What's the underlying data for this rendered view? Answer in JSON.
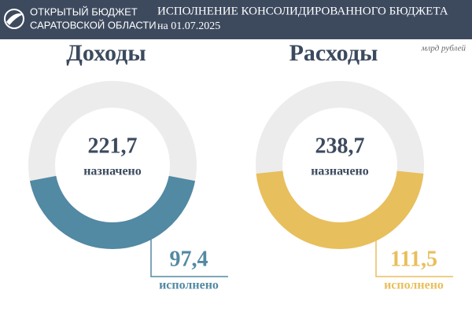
{
  "header": {
    "logo": [
      "ОТКРЫТЫЙ БЮДЖЕТ",
      "САРАТОВСКОЙ ОБЛАСТИ"
    ],
    "title": "ИСПОЛНЕНИЕ КОНСОЛИДИРОВАННОГО БЮДЖЕТА",
    "date": "на 01.07.2025"
  },
  "unit": "млрд рублей",
  "chart_data": [
    {
      "type": "donut",
      "title": "Доходы",
      "categories": [
        "назначено",
        "исполнено"
      ],
      "values": [
        221.7,
        97.4
      ],
      "value_labels": [
        "221,7",
        "97,4"
      ],
      "color": "#5289a3",
      "track_color": "#ececec"
    },
    {
      "type": "donut",
      "title": "Расходы",
      "categories": [
        "назначено",
        "исполнено"
      ],
      "values": [
        238.7,
        111.5
      ],
      "value_labels": [
        "238,7",
        "111,5"
      ],
      "color": "#e8bf5d",
      "track_color": "#ececec"
    }
  ]
}
